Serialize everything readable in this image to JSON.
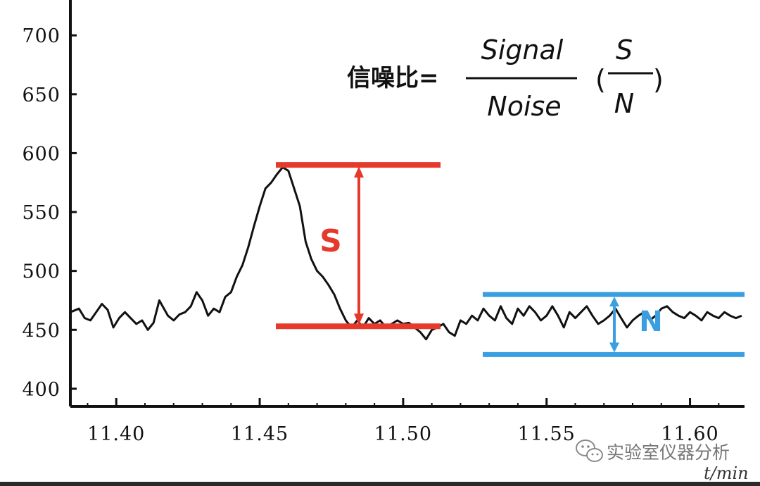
{
  "chart_data": {
    "type": "line",
    "x_unit_label": "t/min",
    "xlim": [
      11.384,
      11.619
    ],
    "ylim": [
      385,
      730
    ],
    "xticks": [
      11.4,
      11.45,
      11.5,
      11.55,
      11.6
    ],
    "xtick_labels": [
      "11.40",
      "11.45",
      "11.50",
      "11.55",
      "11.60"
    ],
    "yticks": [
      400,
      450,
      500,
      550,
      600,
      650,
      700
    ],
    "ytick_labels": [
      "400",
      "450",
      "500",
      "550",
      "600",
      "650",
      "700"
    ],
    "grid": false,
    "series": [
      {
        "color": "#111111",
        "x": [
          11.384,
          11.387,
          11.389,
          11.391,
          11.393,
          11.395,
          11.397,
          11.399,
          11.401,
          11.403,
          11.405,
          11.407,
          11.409,
          11.411,
          11.413,
          11.415,
          11.418,
          11.42,
          11.422,
          11.424,
          11.426,
          11.428,
          11.43,
          11.432,
          11.434,
          11.436,
          11.438,
          11.44,
          11.442,
          11.444,
          11.446,
          11.448,
          11.45,
          11.452,
          11.454,
          11.456,
          11.458,
          11.46,
          11.462,
          11.464,
          11.466,
          11.468,
          11.47,
          11.472,
          11.474,
          11.476,
          11.478,
          11.48,
          11.482,
          11.484,
          11.486,
          11.488,
          11.49,
          11.492,
          11.494,
          11.496,
          11.498,
          11.5,
          11.502,
          11.504,
          11.506,
          11.508,
          11.51,
          11.512,
          11.514,
          11.516,
          11.518,
          11.52,
          11.522,
          11.524,
          11.526,
          11.528,
          11.53,
          11.532,
          11.534,
          11.536,
          11.538,
          11.54,
          11.542,
          11.544,
          11.546,
          11.548,
          11.55,
          11.552,
          11.554,
          11.556,
          11.558,
          11.56,
          11.562,
          11.564,
          11.566,
          11.568,
          11.57,
          11.572,
          11.574,
          11.576,
          11.578,
          11.58,
          11.582,
          11.584,
          11.586,
          11.588,
          11.59,
          11.592,
          11.594,
          11.596,
          11.598,
          11.6,
          11.602,
          11.604,
          11.606,
          11.608,
          11.61,
          11.612,
          11.614,
          11.616,
          11.618
        ],
        "y": [
          465,
          468,
          460,
          458,
          465,
          472,
          467,
          452,
          460,
          465,
          460,
          455,
          458,
          450,
          456,
          475,
          462,
          458,
          463,
          465,
          470,
          482,
          475,
          462,
          468,
          465,
          478,
          482,
          495,
          505,
          520,
          538,
          555,
          570,
          575,
          582,
          588,
          585,
          570,
          555,
          525,
          510,
          500,
          495,
          488,
          480,
          468,
          458,
          452,
          458,
          452,
          460,
          455,
          458,
          452,
          455,
          458,
          455,
          456,
          452,
          448,
          442,
          450,
          452,
          455,
          448,
          445,
          458,
          455,
          462,
          458,
          468,
          462,
          458,
          470,
          460,
          455,
          468,
          462,
          470,
          465,
          458,
          462,
          470,
          462,
          452,
          465,
          460,
          465,
          470,
          462,
          455,
          458,
          462,
          468,
          460,
          452,
          458,
          462,
          465,
          458,
          462,
          468,
          470,
          465,
          462,
          460,
          465,
          462,
          458,
          465,
          462,
          460,
          465,
          462,
          460,
          462
        ]
      }
    ],
    "annotations": {
      "formula_prefix": "信噪比=",
      "formula_numerator": "Signal",
      "formula_denominator": "Noise",
      "ratio_open_paren": "(",
      "ratio_numerator": "S",
      "ratio_denominator": "N",
      "ratio_close_paren": ")",
      "signal_marker": "S",
      "noise_marker": "N",
      "signal_color": "#e53a2b",
      "noise_color": "#3a9fe0",
      "signal_top": 590,
      "signal_bottom": 453,
      "noise_top": 480,
      "noise_bottom": 429
    }
  },
  "watermark": {
    "icon": "wechat-icon",
    "text": "实验室仪器分析"
  }
}
